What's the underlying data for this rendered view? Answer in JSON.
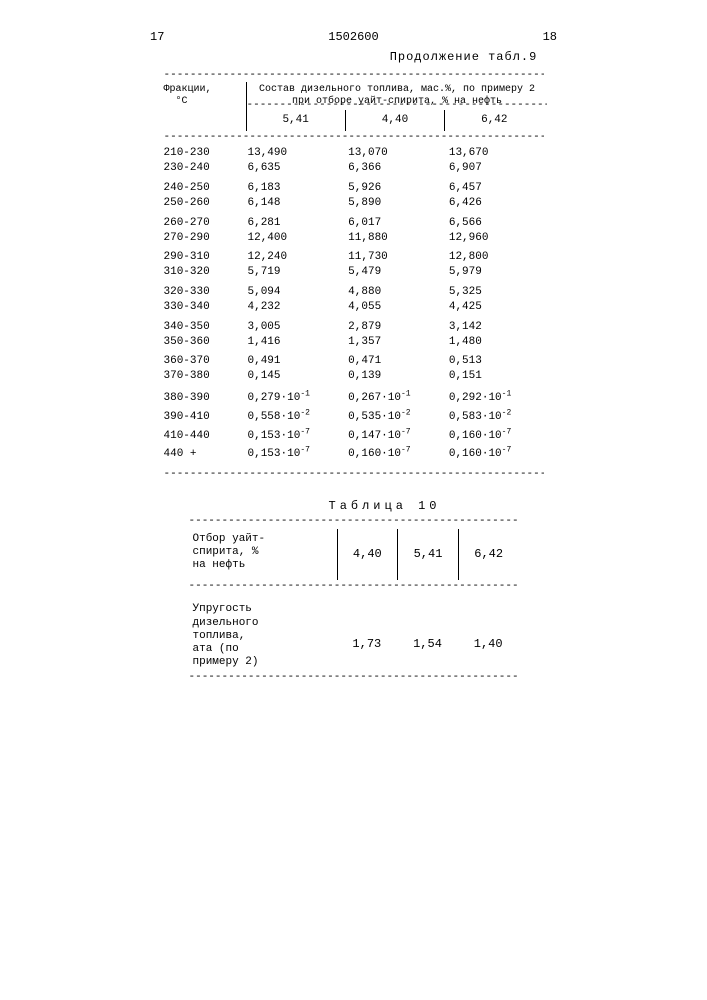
{
  "page_left_num": "17",
  "doc_num": "1502600",
  "page_right_num": "18",
  "cont_title": "Продолжение табл.9",
  "t9": {
    "header_left": "Фракции,\n°C",
    "header_right": "Состав дизельного топлива, мас.%, по примеру 2 при отборе уайт-спирита, % на нефть",
    "sub_cols": [
      "5,41",
      "4,40",
      "6,42"
    ],
    "rows": [
      [
        "210-230",
        "13,490",
        "13,070",
        "13,670"
      ],
      [
        "230-240",
        "6,635",
        "6,366",
        "6,907"
      ],
      [
        "240-250",
        "6,183",
        "5,926",
        "6,457"
      ],
      [
        "250-260",
        "6,148",
        "5,890",
        "6,426"
      ],
      [
        "260-270",
        "6,281",
        "6,017",
        "6,566"
      ],
      [
        "270-290",
        "12,400",
        "11,880",
        "12,960"
      ],
      [
        "290-310",
        "12,240",
        "11,730",
        "12,800"
      ],
      [
        "310-320",
        "5,719",
        "5,479",
        "5,979"
      ],
      [
        "320-330",
        "5,094",
        "4,880",
        "5,325"
      ],
      [
        "330-340",
        "4,232",
        "4,055",
        "4,425"
      ],
      [
        "340-350",
        "3,005",
        "2,879",
        "3,142"
      ],
      [
        "350-360",
        "1,416",
        "1,357",
        "1,480"
      ],
      [
        "360-370",
        "0,491",
        "0,471",
        "0,513"
      ],
      [
        "370-380",
        "0,145",
        "0,139",
        "0,151"
      ]
    ],
    "exp_rows": [
      {
        "label": "380-390",
        "c1_base": "0,279",
        "c1_exp": "-1",
        "c2_base": "0,267",
        "c2_exp": "-1",
        "c3_base": "0,292",
        "c3_exp": "-1"
      },
      {
        "label": "390-410",
        "c1_base": "0,558",
        "c1_exp": "-2",
        "c2_base": "0,535",
        "c2_exp": "-2",
        "c3_base": "0,583",
        "c3_exp": "-2"
      },
      {
        "label": "410-440",
        "c1_base": "0,153",
        "c1_exp": "-7",
        "c2_base": "0,147",
        "c2_exp": "-7",
        "c3_base": "0,160",
        "c3_exp": "-7"
      },
      {
        "label": "440 +",
        "c1_base": "0,153",
        "c1_exp": "-7",
        "c2_base": "0,160",
        "c2_exp": "-7",
        "c3_base": "0,160",
        "c3_exp": "-7"
      }
    ]
  },
  "t10": {
    "title": "Таблица 10",
    "row1_label": "Отбор уайт-\nспирита, %\nна нефть",
    "row1_vals": [
      "4,40",
      "5,41",
      "6,42"
    ],
    "row2_label": "Упругость\nдизельного\nтоплива,\nата (по\nпримеру 2)",
    "row2_vals": [
      "1,73",
      "1,54",
      "1,40"
    ]
  },
  "dash": "---------------------------------------------------------------"
}
